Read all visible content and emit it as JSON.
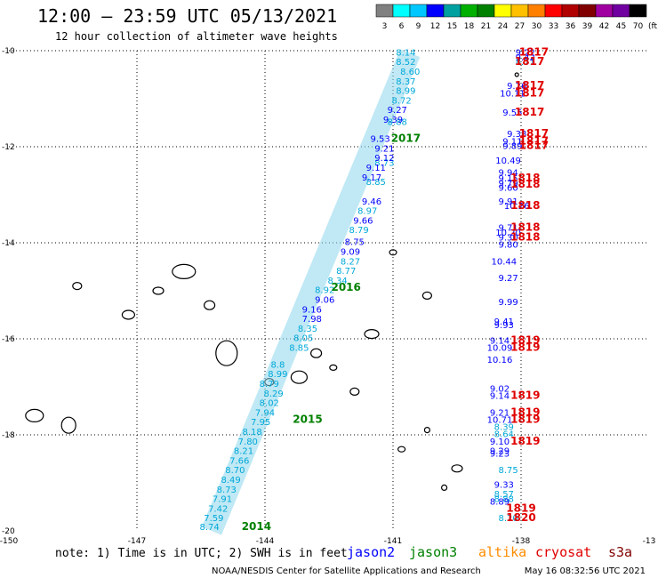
{
  "header": {
    "title": "12:00 – 23:59 UTC 05/13/2021",
    "subtitle": "12 hour collection of altimeter wave heights"
  },
  "colorbar": {
    "labels": [
      "3",
      "6",
      "9",
      "12",
      "15",
      "18",
      "21",
      "24",
      "27",
      "30",
      "33",
      "36",
      "39",
      "42",
      "45",
      "70"
    ],
    "unit": "(ft)",
    "colors": [
      "#808080",
      "#00ffff",
      "#00c8ff",
      "#0000ff",
      "#00a0a0",
      "#00b000",
      "#008000",
      "#ffff00",
      "#ffc000",
      "#ff8000",
      "#ff0000",
      "#b00000",
      "#800000",
      "#a000a0",
      "#7000a0",
      "#000000"
    ]
  },
  "footer": {
    "note": "note:  1) Time is in UTC;  2) SWH is in feet",
    "credit": "NOAA/NESDIS Center for Satellite Applications and Research",
    "timestamp": "May 16 08:32:56 UTC 2021",
    "satellites": [
      {
        "name": "jason2",
        "color": "#0000ff"
      },
      {
        "name": "jason3",
        "color": "#008000"
      },
      {
        "name": "altika",
        "color": "#ff8c00"
      },
      {
        "name": "cryosat",
        "color": "#e00000"
      },
      {
        "name": "s3a",
        "color": "#800000"
      }
    ]
  },
  "chart_data": {
    "type": "scatter",
    "title": "12:00 – 23:59 UTC 05/13/2021",
    "subtitle": "12 hour collection of altimeter wave heights",
    "xlim": [
      -150,
      -135
    ],
    "ylim": [
      -20,
      -10
    ],
    "xticks": [
      "-150",
      "-147",
      "-144",
      "-141",
      "-138",
      "-13"
    ],
    "yticks": [
      {
        "v": -10,
        "label": "-10"
      },
      {
        "v": -12,
        "label": "-12"
      },
      {
        "v": -14,
        "label": "-14"
      },
      {
        "v": -16,
        "label": "-16"
      },
      {
        "v": -18,
        "label": "-18"
      },
      {
        "v": -20,
        "label": "-20"
      }
    ],
    "grid": true,
    "series": [
      {
        "color": "#00a8d8",
        "points": [
          {
            "x": -140.7,
            "y": -10.1,
            "v": "8.14"
          },
          {
            "x": -140.7,
            "y": -10.3,
            "v": "8.52"
          },
          {
            "x": -140.6,
            "y": -10.5,
            "v": "8.60"
          },
          {
            "x": -140.7,
            "y": -10.7,
            "v": "8.37"
          },
          {
            "x": -140.7,
            "y": -10.9,
            "v": "8.99"
          },
          {
            "x": -140.8,
            "y": -11.1,
            "v": "8.72"
          },
          {
            "x": -140.9,
            "y": -11.55,
            "v": "8.88"
          },
          {
            "x": -141.2,
            "y": -12.4,
            "v": "8.73"
          },
          {
            "x": -141.4,
            "y": -12.8,
            "v": "8.85"
          },
          {
            "x": -141.6,
            "y": -13.4,
            "v": "8.97"
          },
          {
            "x": -141.8,
            "y": -13.8,
            "v": "8.79"
          },
          {
            "x": -142.0,
            "y": -14.45,
            "v": "8.27"
          },
          {
            "x": -142.1,
            "y": -14.65,
            "v": "8.77"
          },
          {
            "x": -142.3,
            "y": -14.85,
            "v": "8.34"
          },
          {
            "x": -142.6,
            "y": -15.05,
            "v": "8.92"
          },
          {
            "x": -143.0,
            "y": -15.85,
            "v": "8.35"
          },
          {
            "x": -143.1,
            "y": -16.05,
            "v": "8.05"
          },
          {
            "x": -143.2,
            "y": -16.25,
            "v": "8.85"
          },
          {
            "x": -143.7,
            "y": -16.6,
            "v": "8.8"
          },
          {
            "x": -143.7,
            "y": -16.8,
            "v": "8.99"
          },
          {
            "x": -143.9,
            "y": -17.0,
            "v": "8.79"
          },
          {
            "x": -143.9,
            "y": -17.4,
            "v": "8.02"
          },
          {
            "x": -144.0,
            "y": -17.6,
            "v": "7.94"
          },
          {
            "x": -144.1,
            "y": -17.8,
            "v": "7.95"
          },
          {
            "x": -144.3,
            "y": -18.0,
            "v": "8.18"
          },
          {
            "x": -144.4,
            "y": -18.2,
            "v": "7.80"
          },
          {
            "x": -144.5,
            "y": -18.4,
            "v": "8.21"
          },
          {
            "x": -144.6,
            "y": -18.6,
            "v": "7.66"
          },
          {
            "x": -144.7,
            "y": -18.8,
            "v": "8.70"
          },
          {
            "x": -144.8,
            "y": -19.0,
            "v": "8.49"
          },
          {
            "x": -144.9,
            "y": -19.2,
            "v": "8.73"
          },
          {
            "x": -145.0,
            "y": -19.4,
            "v": "7.91"
          },
          {
            "x": -145.1,
            "y": -19.6,
            "v": "7.42"
          },
          {
            "x": -145.2,
            "y": -19.8,
            "v": "7.59"
          },
          {
            "x": -145.3,
            "y": -19.98,
            "v": "8.74"
          },
          {
            "x": -143.8,
            "y": -17.2,
            "v": "8.29"
          },
          {
            "x": -138.4,
            "y": -17.9,
            "v": "8.39"
          },
          {
            "x": -138.4,
            "y": -18.05,
            "v": "8.64"
          },
          {
            "x": -138.4,
            "y": -19.3,
            "v": "8.57"
          },
          {
            "x": -138.4,
            "y": -19.4,
            "v": "8.88"
          },
          {
            "x": -138.3,
            "y": -19.8,
            "v": "8.20"
          },
          {
            "x": -137.9,
            "y": -10.3,
            "v": "8.71"
          },
          {
            "x": -138.3,
            "y": -18.8,
            "v": "8.75"
          }
        ]
      },
      {
        "color": "#0000ff",
        "points": [
          {
            "x": -140.9,
            "y": -11.3,
            "v": "9.27"
          },
          {
            "x": -141.0,
            "y": -11.5,
            "v": "9.39"
          },
          {
            "x": -141.3,
            "y": -11.9,
            "v": "9.53"
          },
          {
            "x": -141.2,
            "y": -12.1,
            "v": "9.21"
          },
          {
            "x": -141.2,
            "y": -12.3,
            "v": "9.12"
          },
          {
            "x": -141.4,
            "y": -12.5,
            "v": "9.11"
          },
          {
            "x": -141.5,
            "y": -12.7,
            "v": "9.17"
          },
          {
            "x": -141.5,
            "y": -13.2,
            "v": "9.46"
          },
          {
            "x": -141.7,
            "y": -13.6,
            "v": "9.66"
          },
          {
            "x": -141.9,
            "y": -14.05,
            "v": "8.75"
          },
          {
            "x": -142.0,
            "y": -14.25,
            "v": "9.09"
          },
          {
            "x": -142.6,
            "y": -15.25,
            "v": "9.06"
          },
          {
            "x": -142.9,
            "y": -15.45,
            "v": "9.16"
          },
          {
            "x": -142.9,
            "y": -15.65,
            "v": "7.98"
          },
          {
            "x": -137.9,
            "y": -10.1,
            "v": "9.22"
          },
          {
            "x": -137.9,
            "y": -10.2,
            "v": "9.42"
          },
          {
            "x": -138.1,
            "y": -10.8,
            "v": "9.26"
          },
          {
            "x": -138.2,
            "y": -10.95,
            "v": "10.11"
          },
          {
            "x": -138.2,
            "y": -11.35,
            "v": "9.55"
          },
          {
            "x": -138.1,
            "y": -11.8,
            "v": "9.38"
          },
          {
            "x": -138.2,
            "y": -11.95,
            "v": "9.11"
          },
          {
            "x": -138.2,
            "y": -12.05,
            "v": "9.89"
          },
          {
            "x": -138.3,
            "y": -12.35,
            "v": "10.49"
          },
          {
            "x": -138.3,
            "y": -12.6,
            "v": "9.94"
          },
          {
            "x": -138.3,
            "y": -12.72,
            "v": "9.15"
          },
          {
            "x": -138.3,
            "y": -12.82,
            "v": "9.79"
          },
          {
            "x": -138.3,
            "y": -12.92,
            "v": "9.60"
          },
          {
            "x": -138.3,
            "y": -13.2,
            "v": "9.91"
          },
          {
            "x": -138.1,
            "y": -13.3,
            "v": "10.26"
          },
          {
            "x": -138.3,
            "y": -13.75,
            "v": "9.71"
          },
          {
            "x": -138.3,
            "y": -13.85,
            "v": "10.20"
          },
          {
            "x": -138.3,
            "y": -13.95,
            "v": "9.30"
          },
          {
            "x": -138.3,
            "y": -14.1,
            "v": "9.80"
          },
          {
            "x": -138.4,
            "y": -14.45,
            "v": "10.44"
          },
          {
            "x": -138.3,
            "y": -14.8,
            "v": "9.27"
          },
          {
            "x": -138.3,
            "y": -15.3,
            "v": "9.99"
          },
          {
            "x": -138.4,
            "y": -15.7,
            "v": "9.41"
          },
          {
            "x": -138.4,
            "y": -15.78,
            "v": "9.93"
          },
          {
            "x": -138.5,
            "y": -16.1,
            "v": "9.14"
          },
          {
            "x": -138.5,
            "y": -16.25,
            "v": "10.09"
          },
          {
            "x": -138.5,
            "y": -16.5,
            "v": "10.16"
          },
          {
            "x": -138.5,
            "y": -17.1,
            "v": "9.02"
          },
          {
            "x": -138.5,
            "y": -17.25,
            "v": "9.14"
          },
          {
            "x": -138.5,
            "y": -17.6,
            "v": "9.21"
          },
          {
            "x": -138.5,
            "y": -17.75,
            "v": "10.71"
          },
          {
            "x": -138.5,
            "y": -18.2,
            "v": "9.10"
          },
          {
            "x": -138.5,
            "y": -18.4,
            "v": "9.29"
          },
          {
            "x": -138.5,
            "y": -18.45,
            "v": "9.23"
          },
          {
            "x": -138.4,
            "y": -19.1,
            "v": "9.33"
          },
          {
            "x": -138.5,
            "y": -19.45,
            "v": "8.89"
          }
        ]
      },
      {
        "color": "#008000",
        "points": [
          {
            "x": -140.7,
            "y": -11.9,
            "v": "2017"
          },
          {
            "x": -142.1,
            "y": -15.0,
            "v": "2016"
          },
          {
            "x": -143.0,
            "y": -17.75,
            "v": "2015"
          },
          {
            "x": -144.2,
            "y": -19.98,
            "v": "2014"
          }
        ]
      },
      {
        "color": "#e00000",
        "points": [
          {
            "x": -137.7,
            "y": -10.1,
            "v": "1817"
          },
          {
            "x": -137.8,
            "y": -10.3,
            "v": "1817"
          },
          {
            "x": -137.8,
            "y": -10.8,
            "v": "1817"
          },
          {
            "x": -137.8,
            "y": -10.95,
            "v": "1817"
          },
          {
            "x": -137.8,
            "y": -11.35,
            "v": "1817"
          },
          {
            "x": -137.7,
            "y": -11.8,
            "v": "1817"
          },
          {
            "x": -137.7,
            "y": -11.95,
            "v": "1817"
          },
          {
            "x": -137.7,
            "y": -12.05,
            "v": "1817"
          },
          {
            "x": -137.9,
            "y": -12.72,
            "v": "1818"
          },
          {
            "x": -137.9,
            "y": -12.85,
            "v": "1818"
          },
          {
            "x": -137.9,
            "y": -13.3,
            "v": "1818"
          },
          {
            "x": -137.9,
            "y": -13.75,
            "v": "1818"
          },
          {
            "x": -137.9,
            "y": -13.95,
            "v": "1818"
          },
          {
            "x": -137.9,
            "y": -16.1,
            "v": "1819"
          },
          {
            "x": -137.9,
            "y": -16.25,
            "v": "1819"
          },
          {
            "x": -137.9,
            "y": -17.25,
            "v": "1819"
          },
          {
            "x": -137.9,
            "y": -17.6,
            "v": "1819"
          },
          {
            "x": -137.9,
            "y": -17.75,
            "v": "1819"
          },
          {
            "x": -137.9,
            "y": -18.2,
            "v": "1819"
          },
          {
            "x": -138.0,
            "y": -19.6,
            "v": "1819"
          },
          {
            "x": -138.0,
            "y": -19.8,
            "v": "1820"
          }
        ]
      }
    ]
  }
}
